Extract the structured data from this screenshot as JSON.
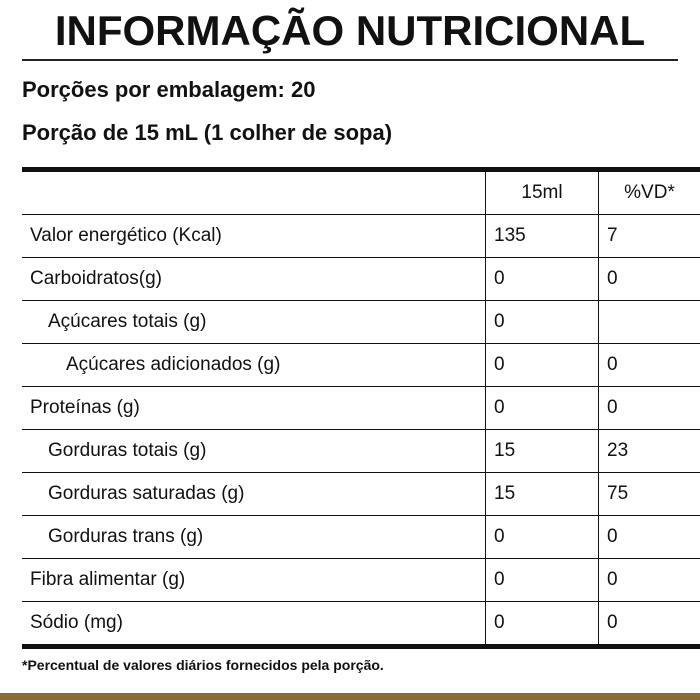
{
  "title": "INFORMAÇÃO NUTRICIONAL",
  "servings": "Porções por embalagem: 20",
  "portion": "Porção de 15 mL (1 colher de sopa)",
  "table": {
    "headers": [
      "",
      "15ml",
      "%VD*"
    ],
    "rows": [
      {
        "name": "Valor energético (Kcal)",
        "amount": "135",
        "vd": "7",
        "indent": 0
      },
      {
        "name": "Carboidratos(g)",
        "amount": "0",
        "vd": "0",
        "indent": 0
      },
      {
        "name": "Açúcares totais (g)",
        "amount": "0",
        "vd": "",
        "indent": 1
      },
      {
        "name": "Açúcares adicionados (g)",
        "amount": "0",
        "vd": "0",
        "indent": 2
      },
      {
        "name": "Proteínas (g)",
        "amount": "0",
        "vd": "0",
        "indent": 0
      },
      {
        "name": "Gorduras totais (g)",
        "amount": "15",
        "vd": "23",
        "indent": 1
      },
      {
        "name": "Gorduras saturadas (g)",
        "amount": "15",
        "vd": "75",
        "indent": 1
      },
      {
        "name": "Gorduras trans (g)",
        "amount": "0",
        "vd": "0",
        "indent": 1
      },
      {
        "name": "Fibra alimentar (g)",
        "amount": "0",
        "vd": "0",
        "indent": 0
      },
      {
        "name": "Sódio (mg)",
        "amount": "0",
        "vd": "0",
        "indent": 0
      }
    ]
  },
  "footnote": "*Percentual de valores diários fornecidos pela porção.",
  "colors": {
    "accent_bar": "#8b6a3a"
  }
}
